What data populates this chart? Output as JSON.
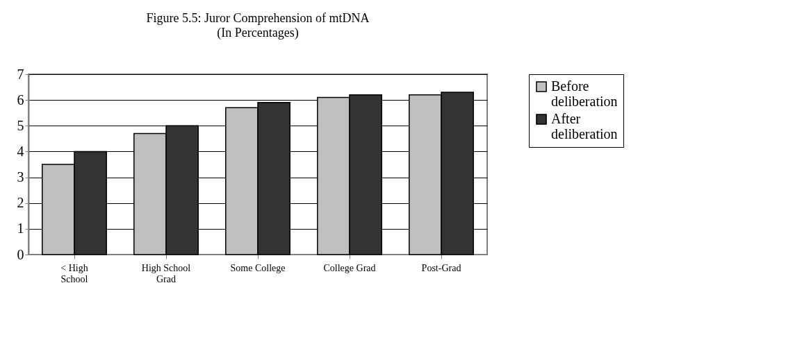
{
  "chart_data": {
    "type": "bar",
    "title": "Figure 5.5: Juror Comprehension of mtDNA",
    "subtitle": "(In Percentages)",
    "categories": [
      "< High School",
      "High School Grad",
      "Some College",
      "College Grad",
      "Post-Grad"
    ],
    "series": [
      {
        "name": "Before deliberation",
        "color": "#c0c0c0",
        "values": [
          3.5,
          4.7,
          5.7,
          6.1,
          6.2
        ]
      },
      {
        "name": "After deliberation",
        "color": "#333333",
        "values": [
          4.0,
          5.0,
          5.9,
          6.2,
          6.3
        ]
      }
    ],
    "ylim": [
      0,
      7
    ],
    "yticks": [
      0,
      1,
      2,
      3,
      4,
      5,
      6,
      7
    ],
    "grid": "y",
    "legend": "right"
  }
}
